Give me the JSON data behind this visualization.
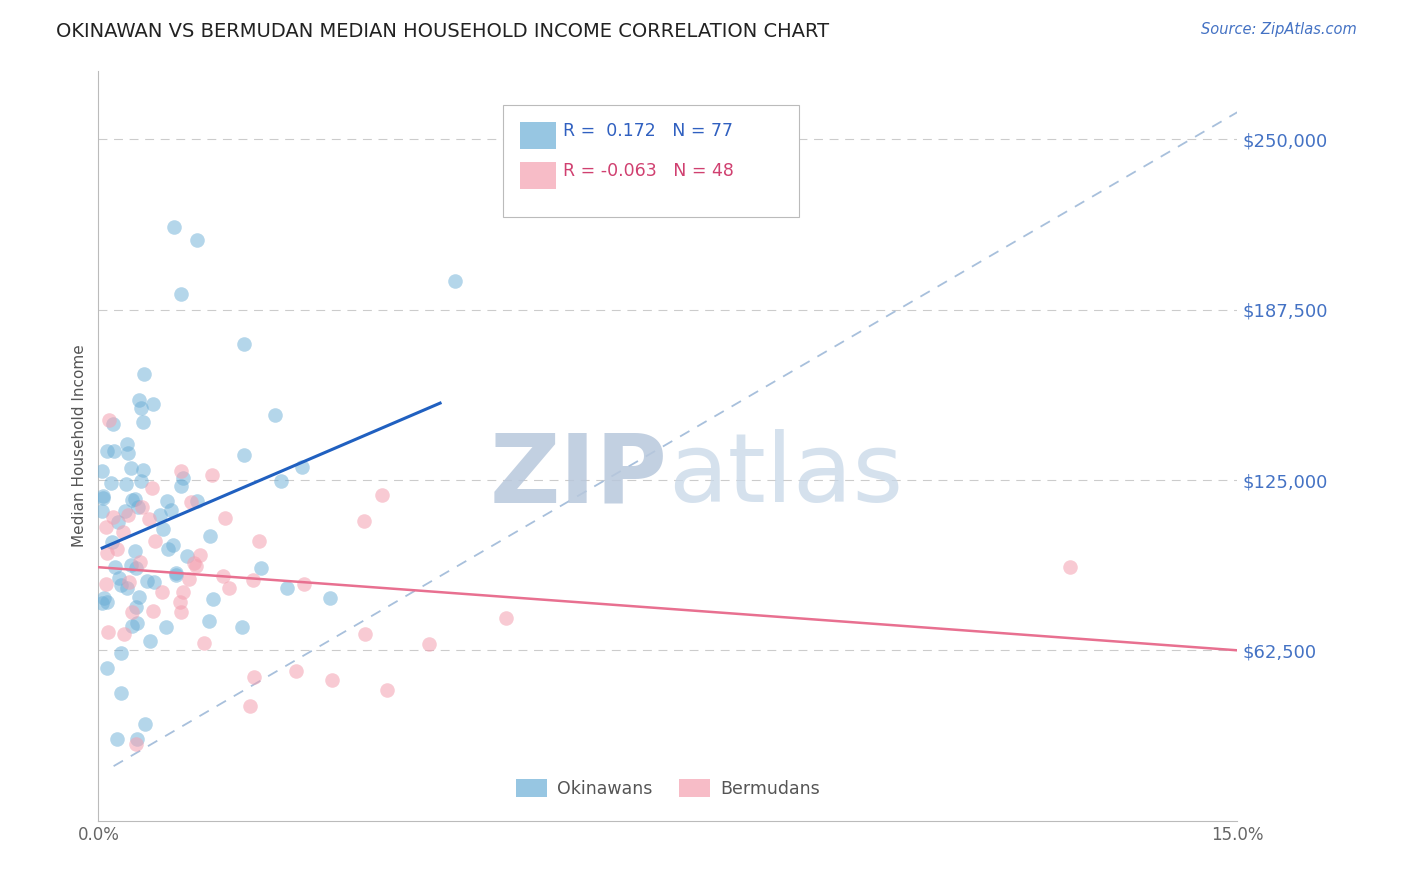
{
  "title": "OKINAWAN VS BERMUDAN MEDIAN HOUSEHOLD INCOME CORRELATION CHART",
  "source_text": "Source: ZipAtlas.com",
  "ylabel": "Median Household Income",
  "xlim": [
    0.0,
    0.15
  ],
  "ylim": [
    0,
    275000
  ],
  "ytick_values": [
    62500,
    125000,
    187500,
    250000
  ],
  "ytick_labels": [
    "$62,500",
    "$125,000",
    "$187,500",
    "$250,000"
  ],
  "xtick_values": [
    0.0,
    0.15
  ],
  "xtick_labels": [
    "0.0%",
    "15.0%"
  ],
  "okinawan_color": "#6baed6",
  "bermudan_color": "#f4a0b0",
  "title_color": "#222222",
  "ytick_color": "#4472C4",
  "background_color": "#ffffff",
  "grid_color": "#cccccc",
  "watermark_zip_color": "#c0cfe8",
  "watermark_atlas_color": "#c8d8e8",
  "diag_line_color": "#a8c0dc",
  "ok_trend_color": "#2060c0",
  "bm_trend_color": "#e87090",
  "legend_box_color": "#dddddd",
  "legend_text_blue": "#3060c0",
  "legend_text_pink": "#d04070",
  "source_color": "#4472C4"
}
